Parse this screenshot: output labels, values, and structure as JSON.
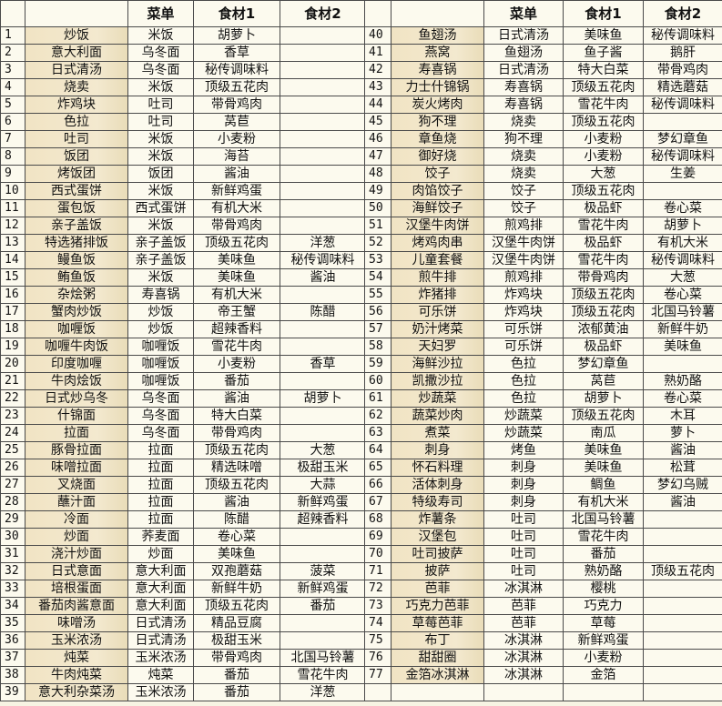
{
  "header": {
    "col_menu": "菜单",
    "col_ing1": "食材1",
    "col_ing2": "食材2"
  },
  "colors": {
    "name_column": "#f1e4c4",
    "background": "#fcfaee",
    "border": "#4a4a4a"
  },
  "left_rows": [
    {
      "no": "1",
      "name": "炒饭",
      "menu": "米饭",
      "ing1": "胡萝卜",
      "ing2": ""
    },
    {
      "no": "2",
      "name": "意大利面",
      "menu": "乌冬面",
      "ing1": "香草",
      "ing2": ""
    },
    {
      "no": "3",
      "name": "日式清汤",
      "menu": "乌冬面",
      "ing1": "秘传调味料",
      "ing2": ""
    },
    {
      "no": "4",
      "name": "烧卖",
      "menu": "米饭",
      "ing1": "顶级五花肉",
      "ing2": ""
    },
    {
      "no": "5",
      "name": "炸鸡块",
      "menu": "吐司",
      "ing1": "带骨鸡肉",
      "ing2": ""
    },
    {
      "no": "6",
      "name": "色拉",
      "menu": "吐司",
      "ing1": "莴苣",
      "ing2": ""
    },
    {
      "no": "7",
      "name": "吐司",
      "menu": "米饭",
      "ing1": "小麦粉",
      "ing2": ""
    },
    {
      "no": "8",
      "name": "饭团",
      "menu": "米饭",
      "ing1": "海苔",
      "ing2": ""
    },
    {
      "no": "9",
      "name": "烤饭团",
      "menu": "饭团",
      "ing1": "酱油",
      "ing2": ""
    },
    {
      "no": "10",
      "name": "西式蛋饼",
      "menu": "米饭",
      "ing1": "新鲜鸡蛋",
      "ing2": ""
    },
    {
      "no": "11",
      "name": "蛋包饭",
      "menu": "西式蛋饼",
      "ing1": "有机大米",
      "ing2": ""
    },
    {
      "no": "12",
      "name": "亲子盖饭",
      "menu": "米饭",
      "ing1": "带骨鸡肉",
      "ing2": ""
    },
    {
      "no": "13",
      "name": "特选猪排饭",
      "menu": "亲子盖饭",
      "ing1": "顶级五花肉",
      "ing2": "洋葱"
    },
    {
      "no": "14",
      "name": "鳗鱼饭",
      "menu": "亲子盖饭",
      "ing1": "美味鱼",
      "ing2": "秘传调味料"
    },
    {
      "no": "15",
      "name": "鲔鱼饭",
      "menu": "米饭",
      "ing1": "美味鱼",
      "ing2": "酱油"
    },
    {
      "no": "16",
      "name": "杂烩粥",
      "menu": "寿喜锅",
      "ing1": "有机大米",
      "ing2": ""
    },
    {
      "no": "17",
      "name": "蟹肉炒饭",
      "menu": "炒饭",
      "ing1": "帝王蟹",
      "ing2": "陈醋"
    },
    {
      "no": "18",
      "name": "咖喱饭",
      "menu": "炒饭",
      "ing1": "超辣香料",
      "ing2": ""
    },
    {
      "no": "19",
      "name": "咖喱牛肉饭",
      "menu": "咖喱饭",
      "ing1": "雪花牛肉",
      "ing2": ""
    },
    {
      "no": "20",
      "name": "印度咖喱",
      "menu": "咖喱饭",
      "ing1": "小麦粉",
      "ing2": "香草"
    },
    {
      "no": "21",
      "name": "牛肉烩饭",
      "menu": "咖喱饭",
      "ing1": "番茄",
      "ing2": ""
    },
    {
      "no": "22",
      "name": "日式炒乌冬",
      "menu": "乌冬面",
      "ing1": "酱油",
      "ing2": "胡萝卜"
    },
    {
      "no": "23",
      "name": "什锦面",
      "menu": "乌冬面",
      "ing1": "特大白菜",
      "ing2": ""
    },
    {
      "no": "24",
      "name": "拉面",
      "menu": "乌冬面",
      "ing1": "带骨鸡肉",
      "ing2": ""
    },
    {
      "no": "25",
      "name": "豚骨拉面",
      "menu": "拉面",
      "ing1": "顶级五花肉",
      "ing2": "大葱"
    },
    {
      "no": "26",
      "name": "味噌拉面",
      "menu": "拉面",
      "ing1": "精选味噌",
      "ing2": "极甜玉米"
    },
    {
      "no": "27",
      "name": "叉烧面",
      "menu": "拉面",
      "ing1": "顶级五花肉",
      "ing2": "大蒜"
    },
    {
      "no": "28",
      "name": "蘸汁面",
      "menu": "拉面",
      "ing1": "酱油",
      "ing2": "新鲜鸡蛋"
    },
    {
      "no": "29",
      "name": "冷面",
      "menu": "拉面",
      "ing1": "陈醋",
      "ing2": "超辣香料"
    },
    {
      "no": "30",
      "name": "炒面",
      "menu": "荞麦面",
      "ing1": "卷心菜",
      "ing2": ""
    },
    {
      "no": "31",
      "name": "浇汁炒面",
      "menu": "炒面",
      "ing1": "美味鱼",
      "ing2": ""
    },
    {
      "no": "32",
      "name": "日式意面",
      "menu": "意大利面",
      "ing1": "双孢蘑菇",
      "ing2": "菠菜"
    },
    {
      "no": "33",
      "name": "培根蛋面",
      "menu": "意大利面",
      "ing1": "新鲜牛奶",
      "ing2": "新鲜鸡蛋"
    },
    {
      "no": "34",
      "name": "番茄肉酱意面",
      "menu": "意大利面",
      "ing1": "顶级五花肉",
      "ing2": "番茄"
    },
    {
      "no": "35",
      "name": "味噌汤",
      "menu": "日式清汤",
      "ing1": "精品豆腐",
      "ing2": ""
    },
    {
      "no": "36",
      "name": "玉米浓汤",
      "menu": "日式清汤",
      "ing1": "极甜玉米",
      "ing2": ""
    },
    {
      "no": "37",
      "name": "炖菜",
      "menu": "玉米浓汤",
      "ing1": "带骨鸡肉",
      "ing2": "北国马铃薯"
    },
    {
      "no": "38",
      "name": "牛肉炖菜",
      "menu": "炖菜",
      "ing1": "番茄",
      "ing2": "雪花牛肉"
    },
    {
      "no": "39",
      "name": "意大利杂菜汤",
      "menu": "玉米浓汤",
      "ing1": "番茄",
      "ing2": "洋葱"
    }
  ],
  "right_rows": [
    {
      "no": "40",
      "name": "鱼翅汤",
      "menu": "日式清汤",
      "ing1": "美味鱼",
      "ing2": "秘传调味料"
    },
    {
      "no": "41",
      "name": "燕窝",
      "menu": "鱼翅汤",
      "ing1": "鱼子酱",
      "ing2": "鹅肝"
    },
    {
      "no": "42",
      "name": "寿喜锅",
      "menu": "日式清汤",
      "ing1": "特大白菜",
      "ing2": "带骨鸡肉"
    },
    {
      "no": "43",
      "name": "力士什锦锅",
      "menu": "寿喜锅",
      "ing1": "顶级五花肉",
      "ing2": "精选蘑菇"
    },
    {
      "no": "44",
      "name": "炭火烤肉",
      "menu": "寿喜锅",
      "ing1": "雪花牛肉",
      "ing2": "秘传调味料"
    },
    {
      "no": "45",
      "name": "狗不理",
      "menu": "烧卖",
      "ing1": "顶级五花肉",
      "ing2": ""
    },
    {
      "no": "46",
      "name": "章鱼烧",
      "menu": "狗不理",
      "ing1": "小麦粉",
      "ing2": "梦幻章鱼"
    },
    {
      "no": "47",
      "name": "御好烧",
      "menu": "烧卖",
      "ing1": "小麦粉",
      "ing2": "秘传调味料"
    },
    {
      "no": "48",
      "name": "饺子",
      "menu": "烧卖",
      "ing1": "大葱",
      "ing2": "生姜"
    },
    {
      "no": "49",
      "name": "肉馅饺子",
      "menu": "饺子",
      "ing1": "顶级五花肉",
      "ing2": ""
    },
    {
      "no": "50",
      "name": "海鲜饺子",
      "menu": "饺子",
      "ing1": "极品虾",
      "ing2": "卷心菜"
    },
    {
      "no": "51",
      "name": "汉堡牛肉饼",
      "menu": "煎鸡排",
      "ing1": "雪花牛肉",
      "ing2": "胡萝卜"
    },
    {
      "no": "52",
      "name": "烤鸡肉串",
      "menu": "汉堡牛肉饼",
      "ing1": "极品虾",
      "ing2": "有机大米"
    },
    {
      "no": "53",
      "name": "儿童套餐",
      "menu": "汉堡牛肉饼",
      "ing1": "雪花牛肉",
      "ing2": "秘传调味料"
    },
    {
      "no": "54",
      "name": "煎牛排",
      "menu": "煎鸡排",
      "ing1": "带骨鸡肉",
      "ing2": "大葱"
    },
    {
      "no": "55",
      "name": "炸猪排",
      "menu": "炸鸡块",
      "ing1": "顶级五花肉",
      "ing2": "卷心菜"
    },
    {
      "no": "56",
      "name": "可乐饼",
      "menu": "炸鸡块",
      "ing1": "顶级五花肉",
      "ing2": "北国马铃薯"
    },
    {
      "no": "57",
      "name": "奶汁烤菜",
      "menu": "可乐饼",
      "ing1": "浓郁黄油",
      "ing2": "新鲜牛奶"
    },
    {
      "no": "58",
      "name": "天妇罗",
      "menu": "可乐饼",
      "ing1": "极品虾",
      "ing2": "美味鱼"
    },
    {
      "no": "59",
      "name": "海鲜沙拉",
      "menu": "色拉",
      "ing1": "梦幻章鱼",
      "ing2": ""
    },
    {
      "no": "60",
      "name": "凯撒沙拉",
      "menu": "色拉",
      "ing1": "莴苣",
      "ing2": "熟奶酪"
    },
    {
      "no": "61",
      "name": "炒蔬菜",
      "menu": "色拉",
      "ing1": "胡萝卜",
      "ing2": "卷心菜"
    },
    {
      "no": "62",
      "name": "蔬菜炒肉",
      "menu": "炒蔬菜",
      "ing1": "顶级五花肉",
      "ing2": "木耳"
    },
    {
      "no": "63",
      "name": "煮菜",
      "menu": "炒蔬菜",
      "ing1": "南瓜",
      "ing2": "萝卜"
    },
    {
      "no": "64",
      "name": "刺身",
      "menu": "烤鱼",
      "ing1": "美味鱼",
      "ing2": "酱油"
    },
    {
      "no": "65",
      "name": "怀石料理",
      "menu": "刺身",
      "ing1": "美味鱼",
      "ing2": "松茸"
    },
    {
      "no": "66",
      "name": "活体刺身",
      "menu": "刺身",
      "ing1": "鲷鱼",
      "ing2": "梦幻乌贼"
    },
    {
      "no": "67",
      "name": "特级寿司",
      "menu": "刺身",
      "ing1": "有机大米",
      "ing2": "酱油"
    },
    {
      "no": "68",
      "name": "炸薯条",
      "menu": "吐司",
      "ing1": "北国马铃薯",
      "ing2": ""
    },
    {
      "no": "69",
      "name": "汉堡包",
      "menu": "吐司",
      "ing1": "雪花牛肉",
      "ing2": ""
    },
    {
      "no": "70",
      "name": "吐司披萨",
      "menu": "吐司",
      "ing1": "番茄",
      "ing2": ""
    },
    {
      "no": "71",
      "name": "披萨",
      "menu": "吐司",
      "ing1": "熟奶酪",
      "ing2": "顶级五花肉"
    },
    {
      "no": "72",
      "name": "芭菲",
      "menu": "冰淇淋",
      "ing1": "樱桃",
      "ing2": ""
    },
    {
      "no": "73",
      "name": "巧克力芭菲",
      "menu": "芭菲",
      "ing1": "巧克力",
      "ing2": ""
    },
    {
      "no": "74",
      "name": "草莓芭菲",
      "menu": "芭菲",
      "ing1": "草莓",
      "ing2": ""
    },
    {
      "no": "75",
      "name": "布丁",
      "menu": "冰淇淋",
      "ing1": "新鲜鸡蛋",
      "ing2": ""
    },
    {
      "no": "76",
      "name": "甜甜圈",
      "menu": "冰淇淋",
      "ing1": "小麦粉",
      "ing2": ""
    },
    {
      "no": "77",
      "name": "金箔冰淇淋",
      "menu": "冰淇淋",
      "ing1": "金箔",
      "ing2": ""
    }
  ]
}
